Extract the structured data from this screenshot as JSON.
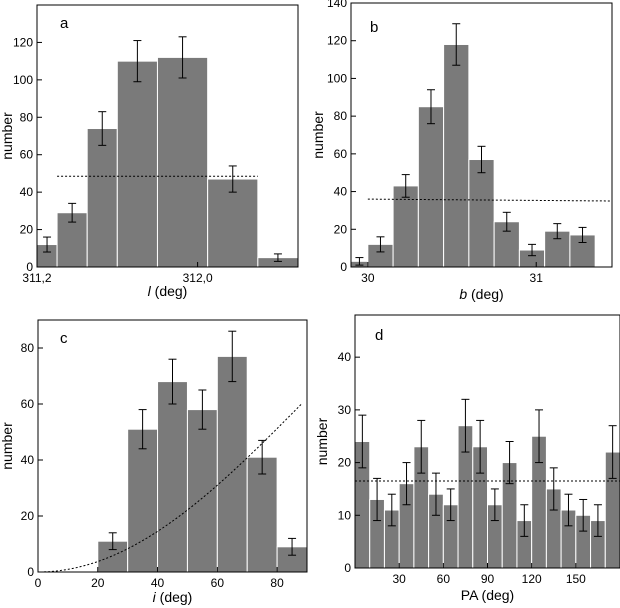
{
  "chart_data": [
    {
      "id": "a",
      "type": "bar",
      "panel_label": "a",
      "ylabel": "number",
      "xlabel_italic": "l",
      "xlabel_unit": " (deg)",
      "xlim": [
        311.2,
        312.5
      ],
      "ylim": [
        0,
        140
      ],
      "xticks": [
        {
          "value": 311.2,
          "label": "311,2"
        },
        {
          "value": 312.0,
          "label": "312,0"
        }
      ],
      "yticks": [
        {
          "value": 0,
          "label": "0"
        },
        {
          "value": 20,
          "label": "20"
        },
        {
          "value": 40,
          "label": "40"
        },
        {
          "value": 60,
          "label": "60"
        },
        {
          "value": 80,
          "label": "80"
        },
        {
          "value": 100,
          "label": "100"
        },
        {
          "value": 120,
          "label": "120"
        }
      ],
      "bars": [
        {
          "x0": 311.2,
          "x1": 311.3,
          "value": 12,
          "err": 4
        },
        {
          "x0": 311.3,
          "x1": 311.45,
          "value": 29,
          "err": 5
        },
        {
          "x0": 311.45,
          "x1": 311.6,
          "value": 74,
          "err": 9
        },
        {
          "x0": 311.6,
          "x1": 311.8,
          "value": 110,
          "err": 11
        },
        {
          "x0": 311.8,
          "x1": 312.05,
          "value": 112,
          "err": 11
        },
        {
          "x0": 312.05,
          "x1": 312.3,
          "value": 47,
          "err": 7
        },
        {
          "x0": 312.3,
          "x1": 312.5,
          "value": 5,
          "err": 2
        }
      ],
      "reference_line": {
        "style": "dotted",
        "points": [
          [
            311.3,
            48.5
          ],
          [
            312.3,
            48.5
          ]
        ]
      }
    },
    {
      "id": "b",
      "type": "bar",
      "panel_label": "b",
      "ylabel": "number",
      "xlabel_italic": "b",
      "xlabel_unit": " (deg)",
      "xlim": [
        29.9,
        31.45
      ],
      "ylim": [
        0,
        140
      ],
      "xticks": [
        {
          "value": 30,
          "label": "30"
        },
        {
          "value": 31,
          "label": "31"
        }
      ],
      "yticks": [
        {
          "value": 0,
          "label": "0"
        },
        {
          "value": 20,
          "label": "20"
        },
        {
          "value": 40,
          "label": "40"
        },
        {
          "value": 60,
          "label": "60"
        },
        {
          "value": 80,
          "label": "80"
        },
        {
          "value": 100,
          "label": "100"
        },
        {
          "value": 120,
          "label": "120"
        },
        {
          "value": 140,
          "label": "140"
        }
      ],
      "bars": [
        {
          "x0": 29.9,
          "x1": 30.0,
          "value": 3,
          "err": 2
        },
        {
          "x0": 30.0,
          "x1": 30.15,
          "value": 12,
          "err": 4
        },
        {
          "x0": 30.15,
          "x1": 30.3,
          "value": 43,
          "err": 6
        },
        {
          "x0": 30.3,
          "x1": 30.45,
          "value": 85,
          "err": 9
        },
        {
          "x0": 30.45,
          "x1": 30.6,
          "value": 118,
          "err": 11
        },
        {
          "x0": 30.6,
          "x1": 30.75,
          "value": 57,
          "err": 7
        },
        {
          "x0": 30.75,
          "x1": 30.9,
          "value": 24,
          "err": 5
        },
        {
          "x0": 30.9,
          "x1": 31.05,
          "value": 9,
          "err": 3
        },
        {
          "x0": 31.05,
          "x1": 31.2,
          "value": 19,
          "err": 4
        },
        {
          "x0": 31.2,
          "x1": 31.35,
          "value": 17,
          "err": 4
        }
      ],
      "reference_line": {
        "style": "dotted",
        "points": [
          [
            30.0,
            36
          ],
          [
            31.45,
            35
          ]
        ]
      }
    },
    {
      "id": "c",
      "type": "bar",
      "panel_label": "c",
      "ylabel": "number",
      "xlabel_italic": "i",
      "xlabel_unit": " (deg)",
      "xlim": [
        0,
        90
      ],
      "ylim": [
        0,
        90
      ],
      "xticks": [
        {
          "value": 0,
          "label": "0"
        },
        {
          "value": 20,
          "label": "20"
        },
        {
          "value": 40,
          "label": "40"
        },
        {
          "value": 60,
          "label": "60"
        },
        {
          "value": 80,
          "label": "80"
        }
      ],
      "yticks": [
        {
          "value": 0,
          "label": "0"
        },
        {
          "value": 20,
          "label": "20"
        },
        {
          "value": 40,
          "label": "40"
        },
        {
          "value": 60,
          "label": "60"
        },
        {
          "value": 80,
          "label": "80"
        }
      ],
      "bars": [
        {
          "x0": 20,
          "x1": 30,
          "value": 11,
          "err": 3
        },
        {
          "x0": 30,
          "x1": 40,
          "value": 51,
          "err": 7
        },
        {
          "x0": 40,
          "x1": 50,
          "value": 68,
          "err": 8
        },
        {
          "x0": 50,
          "x1": 60,
          "value": 58,
          "err": 7
        },
        {
          "x0": 60,
          "x1": 70,
          "value": 77,
          "err": 9
        },
        {
          "x0": 70,
          "x1": 80,
          "value": 41,
          "err": 6
        },
        {
          "x0": 80,
          "x1": 90,
          "value": 9,
          "err": 3
        }
      ],
      "reference_line": {
        "style": "dash-dot",
        "function": "62*(1-cos(i))",
        "domain": [
          2,
          88
        ]
      }
    },
    {
      "id": "d",
      "type": "bar",
      "panel_label": "d",
      "ylabel": "number",
      "xlabel": "PA (deg)",
      "xlim": [
        0,
        180
      ],
      "ylim": [
        0,
        48
      ],
      "xticks": [
        {
          "value": 30,
          "label": "30"
        },
        {
          "value": 60,
          "label": "60"
        },
        {
          "value": 90,
          "label": "90"
        },
        {
          "value": 120,
          "label": "120"
        },
        {
          "value": 150,
          "label": "150"
        }
      ],
      "yticks": [
        {
          "value": 0,
          "label": "0"
        },
        {
          "value": 10,
          "label": "10"
        },
        {
          "value": 20,
          "label": "20"
        },
        {
          "value": 30,
          "label": "30"
        },
        {
          "value": 40,
          "label": "40"
        }
      ],
      "bar_width": 10,
      "values": [
        24,
        13,
        11,
        16,
        23,
        14,
        12,
        27,
        23,
        12,
        20,
        9,
        25,
        15,
        11,
        10,
        9,
        22
      ],
      "errors": [
        5,
        4,
        3,
        4,
        5,
        4,
        3,
        5,
        5,
        3,
        4,
        3,
        5,
        4,
        3,
        3,
        3,
        5
      ],
      "reference_line": {
        "style": "dashed",
        "points": [
          [
            0,
            16.5
          ],
          [
            180,
            16.5
          ]
        ]
      }
    }
  ]
}
